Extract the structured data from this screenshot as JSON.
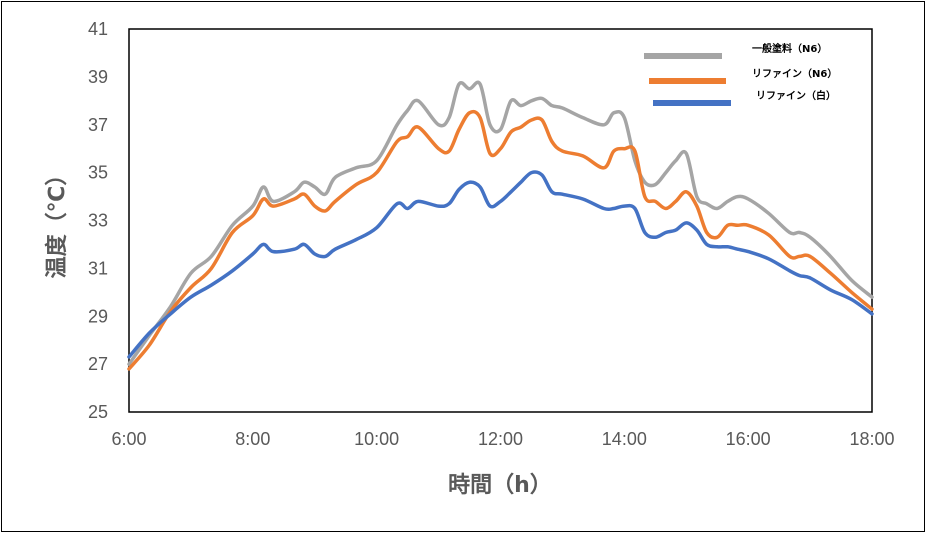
{
  "chart_data": {
    "type": "line",
    "xlabel": "時間（h）",
    "ylabel": "温度（℃）",
    "xlim": [
      6,
      18
    ],
    "ylim": [
      25,
      41
    ],
    "x_ticks": [
      "6:00",
      "8:00",
      "10:00",
      "12:00",
      "14:00",
      "16:00",
      "18:00"
    ],
    "y_ticks": [
      "25",
      "27",
      "29",
      "31",
      "33",
      "35",
      "37",
      "39",
      "41"
    ],
    "legend": {
      "placement": "top-right"
    },
    "grid": false,
    "series": [
      {
        "name": "一般塗料（N6）",
        "color": "#A5A5A5",
        "x": [
          6.0,
          6.33,
          6.67,
          7.0,
          7.33,
          7.67,
          8.0,
          8.17,
          8.33,
          8.67,
          8.83,
          9.0,
          9.17,
          9.33,
          9.67,
          10.0,
          10.33,
          10.5,
          10.67,
          11.0,
          11.17,
          11.33,
          11.5,
          11.67,
          11.83,
          12.0,
          12.17,
          12.33,
          12.5,
          12.67,
          12.83,
          13.0,
          13.33,
          13.67,
          13.83,
          14.0,
          14.17,
          14.33,
          14.5,
          14.67,
          14.83,
          15.0,
          15.17,
          15.33,
          15.5,
          15.67,
          15.83,
          16.0,
          16.33,
          16.67,
          16.83,
          17.0,
          17.33,
          17.67,
          18.0
        ],
        "values": [
          27.0,
          28.2,
          29.4,
          30.8,
          31.5,
          32.8,
          33.6,
          34.4,
          33.8,
          34.2,
          34.6,
          34.4,
          34.1,
          34.8,
          35.2,
          35.5,
          37.0,
          37.6,
          38.0,
          37.0,
          37.3,
          38.7,
          38.5,
          38.7,
          37.0,
          36.8,
          38.0,
          37.8,
          38.0,
          38.1,
          37.8,
          37.7,
          37.3,
          37.0,
          37.5,
          37.3,
          35.5,
          34.6,
          34.5,
          35.0,
          35.5,
          35.8,
          34.0,
          33.7,
          33.5,
          33.8,
          34.0,
          33.9,
          33.3,
          32.5,
          32.5,
          32.3,
          31.5,
          30.5,
          29.8
        ]
      },
      {
        "name": "リファイン（N6）",
        "color": "#ED7D31",
        "x": [
          6.0,
          6.33,
          6.67,
          7.0,
          7.33,
          7.67,
          8.0,
          8.17,
          8.33,
          8.67,
          8.83,
          9.0,
          9.17,
          9.33,
          9.67,
          10.0,
          10.33,
          10.5,
          10.67,
          11.0,
          11.17,
          11.33,
          11.5,
          11.67,
          11.83,
          12.0,
          12.17,
          12.33,
          12.5,
          12.67,
          12.83,
          13.0,
          13.33,
          13.67,
          13.83,
          14.0,
          14.17,
          14.33,
          14.5,
          14.67,
          14.83,
          15.0,
          15.17,
          15.33,
          15.5,
          15.67,
          15.83,
          16.0,
          16.33,
          16.67,
          16.83,
          17.0,
          17.33,
          17.67,
          18.0
        ],
        "values": [
          26.8,
          27.8,
          29.2,
          30.2,
          31.0,
          32.5,
          33.2,
          33.9,
          33.6,
          33.9,
          34.1,
          33.6,
          33.4,
          33.8,
          34.5,
          35.0,
          36.3,
          36.5,
          36.9,
          36.0,
          35.9,
          36.8,
          37.5,
          37.3,
          35.8,
          36.0,
          36.7,
          36.9,
          37.2,
          37.2,
          36.3,
          35.9,
          35.7,
          35.2,
          35.9,
          36.0,
          35.9,
          34.0,
          33.8,
          33.5,
          33.8,
          34.2,
          33.6,
          32.5,
          32.3,
          32.8,
          32.8,
          32.8,
          32.4,
          31.5,
          31.5,
          31.5,
          30.8,
          30.0,
          29.3
        ]
      },
      {
        "name": "リファイン（白）",
        "color": "#4472C4",
        "x": [
          6.0,
          6.33,
          6.67,
          7.0,
          7.33,
          7.67,
          8.0,
          8.17,
          8.33,
          8.67,
          8.83,
          9.0,
          9.17,
          9.33,
          9.67,
          10.0,
          10.33,
          10.5,
          10.67,
          11.0,
          11.17,
          11.33,
          11.5,
          11.67,
          11.83,
          12.0,
          12.17,
          12.33,
          12.5,
          12.67,
          12.83,
          13.0,
          13.33,
          13.67,
          13.83,
          14.0,
          14.17,
          14.33,
          14.5,
          14.67,
          14.83,
          15.0,
          15.17,
          15.33,
          15.5,
          15.67,
          15.83,
          16.0,
          16.33,
          16.67,
          16.83,
          17.0,
          17.33,
          17.67,
          18.0
        ],
        "values": [
          27.3,
          28.3,
          29.1,
          29.8,
          30.3,
          30.9,
          31.6,
          32.0,
          31.7,
          31.8,
          32.0,
          31.6,
          31.5,
          31.8,
          32.2,
          32.7,
          33.7,
          33.5,
          33.8,
          33.6,
          33.7,
          34.3,
          34.6,
          34.4,
          33.6,
          33.8,
          34.2,
          34.6,
          35.0,
          34.9,
          34.2,
          34.1,
          33.9,
          33.5,
          33.5,
          33.6,
          33.5,
          32.5,
          32.3,
          32.5,
          32.6,
          32.9,
          32.6,
          32.0,
          31.9,
          31.9,
          31.8,
          31.7,
          31.4,
          30.9,
          30.7,
          30.6,
          30.1,
          29.7,
          29.1
        ]
      }
    ]
  }
}
